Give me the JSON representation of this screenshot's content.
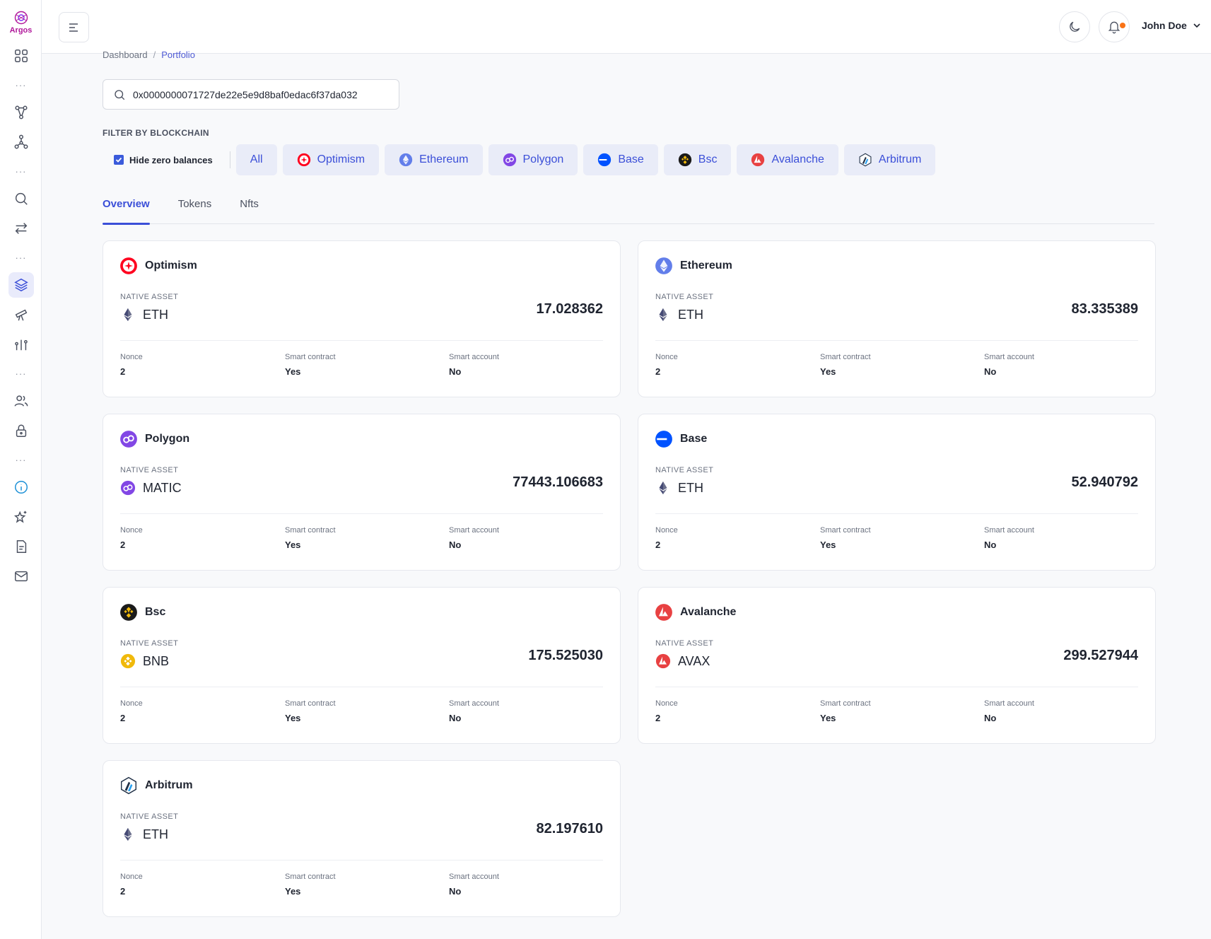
{
  "app": {
    "logo_text": "Argos"
  },
  "header": {
    "user_name": "John Doe"
  },
  "breadcrumb": {
    "root": "Dashboard",
    "separator": "/",
    "current": "Portfolio"
  },
  "search": {
    "value": "0x0000000071727de22e5e9d8baf0edac6f37da032"
  },
  "filter": {
    "label": "FILTER BY BLOCKCHAIN",
    "hide_zero_label": "Hide zero balances",
    "hide_zero_checked": true,
    "chains": [
      {
        "label": "All",
        "icon": "none"
      },
      {
        "label": "Optimism",
        "icon": "optimism-icon"
      },
      {
        "label": "Ethereum",
        "icon": "ethereum-icon"
      },
      {
        "label": "Polygon",
        "icon": "polygon-icon"
      },
      {
        "label": "Base",
        "icon": "base-icon"
      },
      {
        "label": "Bsc",
        "icon": "bsc-icon"
      },
      {
        "label": "Avalanche",
        "icon": "avalanche-icon"
      },
      {
        "label": "Arbitrum",
        "icon": "arbitrum-icon"
      }
    ]
  },
  "tabs": {
    "overview": "Overview",
    "tokens": "Tokens",
    "nfts": "Nfts",
    "active": "Overview"
  },
  "card_labels": {
    "native_asset": "NATIVE ASSET",
    "nonce": "Nonce",
    "smart_contract": "Smart contract",
    "smart_account": "Smart account"
  },
  "cards": [
    {
      "chain": "Optimism",
      "chain_icon": "optimism-icon",
      "asset": "ETH",
      "asset_icon": "eth-icon",
      "balance": "17.028362",
      "nonce": "2",
      "smart_contract": "Yes",
      "smart_account": "No"
    },
    {
      "chain": "Ethereum",
      "chain_icon": "ethereum-icon",
      "asset": "ETH",
      "asset_icon": "eth-icon",
      "balance": "83.335389",
      "nonce": "2",
      "smart_contract": "Yes",
      "smart_account": "No"
    },
    {
      "chain": "Polygon",
      "chain_icon": "polygon-icon",
      "asset": "MATIC",
      "asset_icon": "polygon-icon",
      "balance": "77443.106683",
      "nonce": "2",
      "smart_contract": "Yes",
      "smart_account": "No"
    },
    {
      "chain": "Base",
      "chain_icon": "base-icon",
      "asset": "ETH",
      "asset_icon": "eth-icon",
      "balance": "52.940792",
      "nonce": "2",
      "smart_contract": "Yes",
      "smart_account": "No"
    },
    {
      "chain": "Bsc",
      "chain_icon": "bsc-icon",
      "asset": "BNB",
      "asset_icon": "bnb-icon",
      "balance": "175.525030",
      "nonce": "2",
      "smart_contract": "Yes",
      "smart_account": "No"
    },
    {
      "chain": "Avalanche",
      "chain_icon": "avalanche-icon",
      "asset": "AVAX",
      "asset_icon": "avalanche-icon",
      "balance": "299.527944",
      "nonce": "2",
      "smart_contract": "Yes",
      "smart_account": "No"
    },
    {
      "chain": "Arbitrum",
      "chain_icon": "arbitrum-icon",
      "asset": "ETH",
      "asset_icon": "eth-icon",
      "balance": "82.197610",
      "nonce": "2",
      "smart_contract": "Yes",
      "smart_account": "No"
    }
  ],
  "colors": {
    "accent": "#3b4fd8",
    "optimism": "#ff0420",
    "ethereum": "#627eea",
    "polygon": "#8247e5",
    "base": "#0052ff",
    "bsc": "#f0b90b",
    "avalanche": "#e84142",
    "arbitrum": "#213147",
    "notification_dot": "#f97316"
  }
}
